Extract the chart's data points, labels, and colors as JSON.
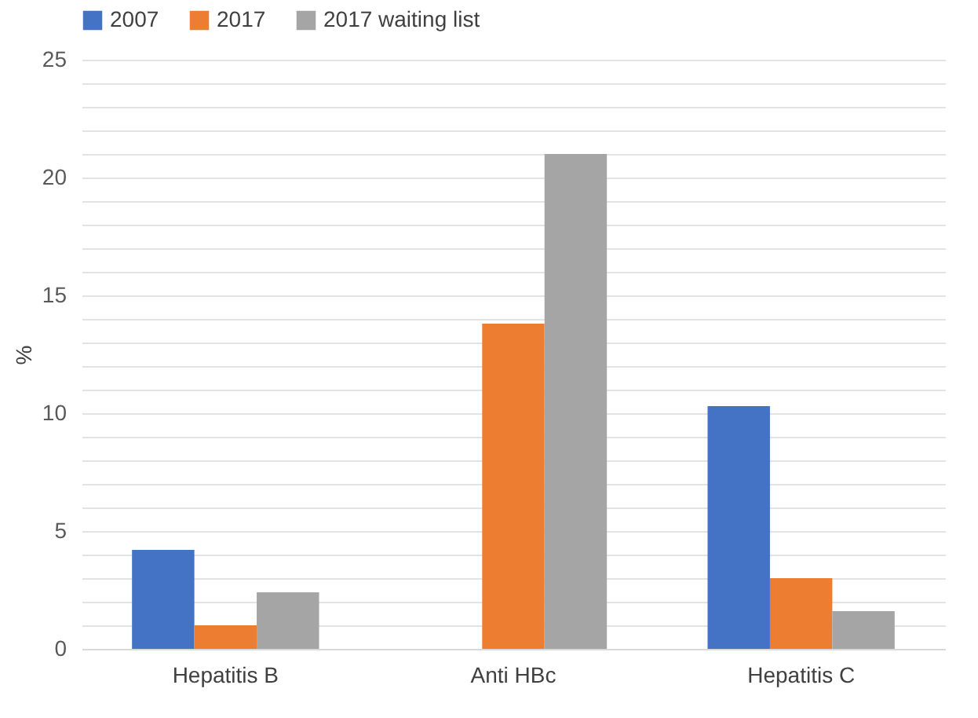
{
  "chart_data": {
    "type": "bar",
    "ylabel": "%",
    "categories": [
      "Hepatitis B",
      "Anti HBc",
      "Hepatitis C"
    ],
    "series": [
      {
        "name": "2007",
        "color": "#4472c4",
        "values": [
          4.2,
          null,
          10.3
        ]
      },
      {
        "name": "2017",
        "color": "#ed7d31",
        "values": [
          1.0,
          13.8,
          3.0
        ]
      },
      {
        "name": "2017 waiting list",
        "color": "#a5a5a5",
        "values": [
          2.4,
          21.0,
          1.6
        ]
      }
    ],
    "ylim": [
      0,
      25
    ],
    "yticks": [
      0,
      {
        "value": 1,
        "label": null
      },
      {
        "value": 2,
        "label": null
      },
      {
        "value": 3,
        "label": null
      },
      {
        "value": 4,
        "label": null
      },
      5,
      {
        "value": 6,
        "label": null
      },
      {
        "value": 7,
        "label": null
      },
      {
        "value": 8,
        "label": null
      },
      {
        "value": 9,
        "label": null
      },
      10,
      {
        "value": 11,
        "label": null
      },
      {
        "value": 12,
        "label": null
      },
      {
        "value": 13,
        "label": null
      },
      {
        "value": 14,
        "label": null
      },
      15,
      {
        "value": 16,
        "label": null
      },
      {
        "value": 17,
        "label": null
      },
      {
        "value": 18,
        "label": null
      },
      {
        "value": 19,
        "label": null
      },
      20,
      {
        "value": 21,
        "label": null
      },
      {
        "value": 22,
        "label": null
      },
      {
        "value": 23,
        "label": null
      },
      {
        "value": 24,
        "label": null
      },
      25
    ],
    "grid": "y",
    "legend": "top"
  }
}
